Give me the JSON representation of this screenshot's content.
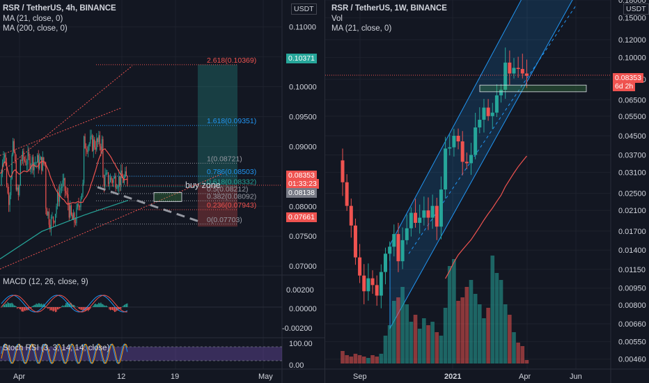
{
  "colors": {
    "background": "#131722",
    "grid": "#1e222d",
    "up": "#26a69a",
    "down": "#ef5350",
    "ma21": "#ef5350",
    "ma200": "#26a69a",
    "channel": "#2196f3",
    "fib_blue": "#2196f3",
    "fib_red": "#ef5350",
    "rsi_band": "#7e57c2",
    "macd": "#2196f3",
    "signal": "#ef5350",
    "buy_zone": "#4caf50"
  },
  "left": {
    "title": "RSR / TetherUS, 4h, BINANCE",
    "ma1": "MA (21, close, 0)",
    "ma2": "MA (200, close, 0)",
    "currency": "USDT",
    "price_tag": "0.08353",
    "countdown": "01:33:23",
    "tag_green": "0.10371",
    "tag_grey": "0.08138",
    "tag_red": "0.07661",
    "buy_zone_label": "buy zone",
    "macd_label": "MACD (12, 26, close, 9)",
    "rsi_label": "Stoch RSI (3, 3, 14, 14, close)",
    "x_labels": [
      "Apr",
      "12",
      "19",
      "May"
    ],
    "fib_levels": [
      {
        "label": "2.618(0.10369)",
        "value": 0.10369,
        "color": "#ef5350"
      },
      {
        "label": "1.618(0.09351)",
        "value": 0.09351,
        "color": "#2196f3"
      },
      {
        "label": "1(0.08721)",
        "value": 0.08721,
        "color": "#9598a1"
      },
      {
        "label": "0.786(0.08503)",
        "value": 0.08503,
        "color": "#2196f3"
      },
      {
        "label": "0.618(0.08332)",
        "value": 0.08332,
        "color": "#26a69a"
      },
      {
        "label": "0.5(0.08212)",
        "value": 0.08212,
        "color": "#9598a1"
      },
      {
        "label": "0.382(0.08092)",
        "value": 0.08092,
        "color": "#9598a1"
      },
      {
        "label": "0.236(0.07943)",
        "value": 0.07943,
        "color": "#ef5350"
      },
      {
        "label": "0(0.07703)",
        "value": 0.07703,
        "color": "#9598a1"
      }
    ],
    "macd_axis": [
      "0.00200",
      "0.00000",
      "-0.00200"
    ],
    "rsi_axis": [
      "100.00",
      "0.00"
    ]
  },
  "right": {
    "title": "RSR / TetherUS, 1W, BINANCE",
    "vol": "Vol",
    "ma1": "MA (21, close, 0)",
    "currency": "USDT",
    "price_tag": "0.08353",
    "countdown": "6d 2h",
    "x_labels": [
      "Sep",
      "2021",
      "Apr",
      "Jun"
    ]
  },
  "chart_data": [
    {
      "type": "candlestick",
      "title": "RSR / TetherUS, 4h, BINANCE",
      "ylim": [
        0.0685,
        0.1145
      ],
      "y_ticks": [
        0.11,
        0.105,
        0.1,
        0.095,
        0.09,
        0.085,
        0.08,
        0.075,
        0.07
      ],
      "last_price": 0.08353,
      "series": [
        {
          "name": "MA (21, close, 0)"
        },
        {
          "name": "MA (200, close, 0)"
        }
      ]
    },
    {
      "type": "candlestick",
      "title": "RSR / TetherUS, 1W, BINANCE",
      "log_scale": true,
      "ylim": [
        0.0044,
        0.18
      ],
      "y_ticks": [
        0.18,
        0.15,
        0.12,
        0.1,
        0.08,
        0.065,
        0.055,
        0.045,
        0.037,
        0.031,
        0.025,
        0.021,
        0.017,
        0.014,
        0.0115,
        0.0095,
        0.008,
        0.0066,
        0.0055,
        0.0046
      ],
      "y_tick_labels": [
        "0.18000",
        "0.15000",
        "0.12000",
        "0.10000",
        "0.08000",
        "0.06500",
        "0.05500",
        "0.04500",
        "0.03700",
        "0.03100",
        "0.02500",
        "0.02100",
        "0.01700",
        "0.01400",
        "0.01150",
        "0.00950",
        "0.00800",
        "0.00660",
        "0.00550",
        "0.00460"
      ],
      "last_price": 0.08353,
      "buy_zone": [
        0.0705,
        0.0755
      ],
      "closes": [
        0.028,
        0.022,
        0.018,
        0.013,
        0.0108,
        0.0092,
        0.0105,
        0.0098,
        0.0088,
        0.0112,
        0.0135,
        0.0145,
        0.0165,
        0.0125,
        0.0155,
        0.0175,
        0.0205,
        0.0185,
        0.0195,
        0.021,
        0.0195,
        0.022,
        0.0178,
        0.026,
        0.0395,
        0.04,
        0.045,
        0.0425,
        0.0345,
        0.034,
        0.037,
        0.049,
        0.053,
        0.06,
        0.055,
        0.057,
        0.068,
        0.072,
        0.095,
        0.085,
        0.09,
        0.089,
        0.085,
        0.083
      ]
    }
  ]
}
